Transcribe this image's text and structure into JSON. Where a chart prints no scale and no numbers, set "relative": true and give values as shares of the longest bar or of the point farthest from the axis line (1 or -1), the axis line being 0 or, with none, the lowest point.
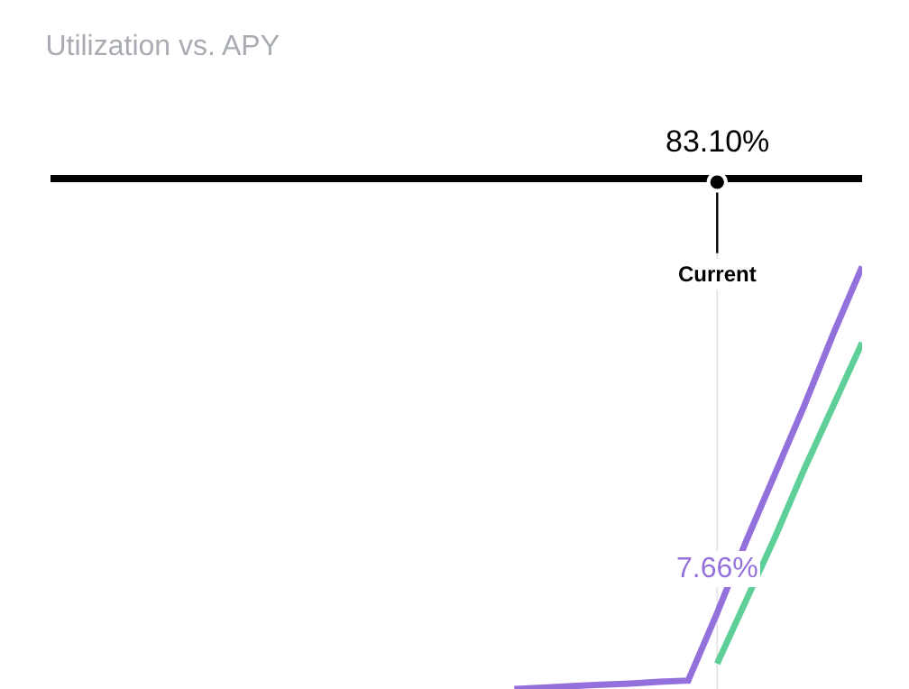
{
  "chart_data": {
    "type": "line",
    "title": "Utilization vs. APY",
    "relative": true,
    "categories": [
      null,
      null,
      null,
      null,
      null,
      null,
      null,
      null,
      null,
      null,
      null,
      null,
      null,
      null,
      null,
      null,
      null,
      null,
      null,
      null,
      null,
      null,
      null,
      null,
      null,
      null,
      null,
      null,
      null
    ],
    "series": [
      {
        "color": "#9370db",
        "values": [
          null,
          null,
          null,
          null,
          null,
          null,
          null,
          null,
          null,
          null,
          null,
          null,
          null,
          null,
          null,
          null,
          0,
          0.003,
          0.007,
          0.01,
          0.013,
          0.017,
          0.02,
          0.18,
          0.35,
          0.51,
          0.67,
          0.84,
          1
        ]
      },
      {
        "color": "#5fcf98",
        "values": [
          null,
          null,
          null,
          null,
          null,
          null,
          null,
          null,
          null,
          null,
          null,
          null,
          null,
          null,
          null,
          null,
          null,
          null,
          null,
          null,
          null,
          null,
          null,
          0.06,
          0.21,
          0.36,
          0.52,
          0.67,
          0.82
        ]
      }
    ],
    "annotations": [
      "83.10%",
      "Current",
      "7.66%"
    ],
    "marker": "none",
    "line_style": "solid"
  }
}
